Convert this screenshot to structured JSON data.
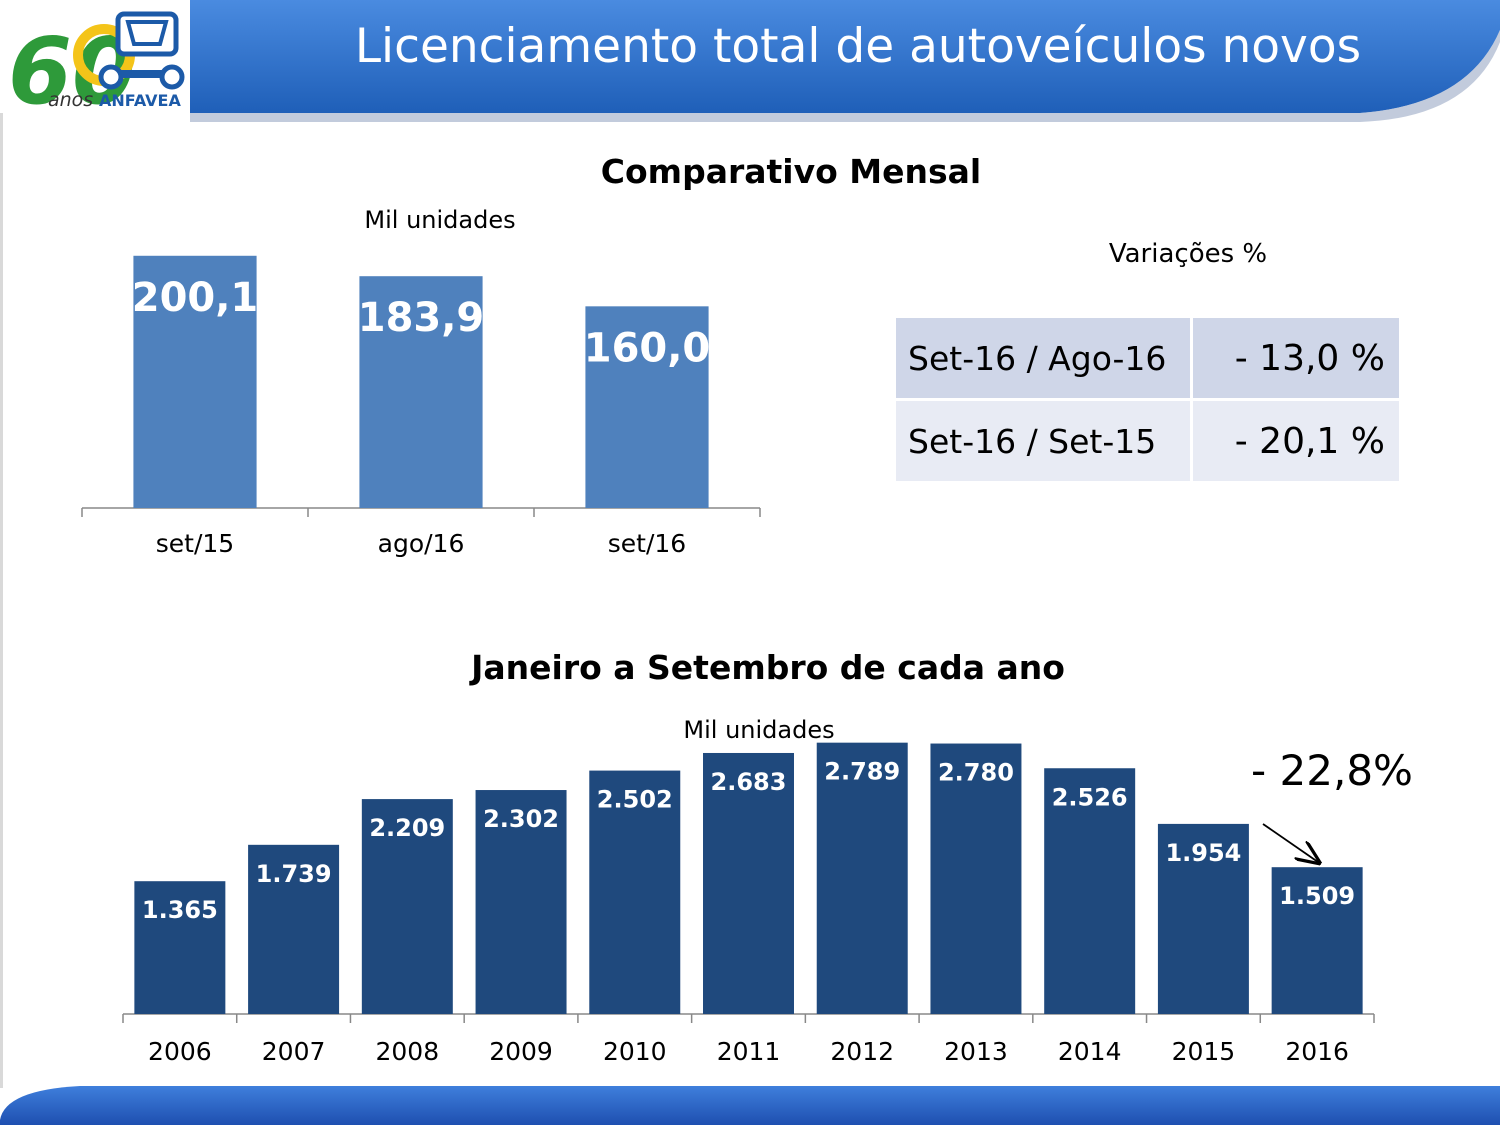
{
  "slide": {
    "title": "Licenciamento total de autoveículos novos",
    "logo": {
      "number": "60",
      "word": "anos",
      "brand": "ANFAVEA"
    },
    "colors": {
      "header": "#2b71c6",
      "bar_monthly": "#4f81bd",
      "bar_annual": "#1f497d",
      "table_dark": "#cfd6e8",
      "table_light": "#e8ebf4",
      "footer": "#2c5fc4"
    }
  },
  "variations": {
    "heading": "Variações %",
    "rows": [
      {
        "label": "Set-16 / Ago-16",
        "value": "- 13,0 %"
      },
      {
        "label": "Set-16 / Set-15",
        "value": "- 20,1 %"
      }
    ]
  },
  "chart_data": [
    {
      "type": "bar",
      "title": "Comparativo Mensal",
      "ylabel": "Mil unidades",
      "categories": [
        "set/15",
        "ago/16",
        "set/16"
      ],
      "values": [
        200.1,
        183.9,
        160.0
      ],
      "data_labels": [
        "200,1",
        "183,9",
        "160,0"
      ],
      "ylim": [
        0,
        215
      ],
      "grid": false,
      "legend": "none"
    },
    {
      "type": "bar",
      "title": "Janeiro a Setembro de cada ano",
      "ylabel": "Mil unidades",
      "categories": [
        "2006",
        "2007",
        "2008",
        "2009",
        "2010",
        "2011",
        "2012",
        "2013",
        "2014",
        "2015",
        "2016"
      ],
      "values": [
        1365,
        1739,
        2209,
        2302,
        2502,
        2683,
        2789,
        2780,
        2526,
        1954,
        1509
      ],
      "data_labels": [
        "1.365",
        "1.739",
        "2.209",
        "2.302",
        "2.502",
        "2.683",
        "2.789",
        "2.780",
        "2.526",
        "1.954",
        "1.509"
      ],
      "ylim": [
        0,
        2950
      ],
      "grid": false,
      "legend": "none",
      "annotation": "- 22,8%"
    }
  ]
}
